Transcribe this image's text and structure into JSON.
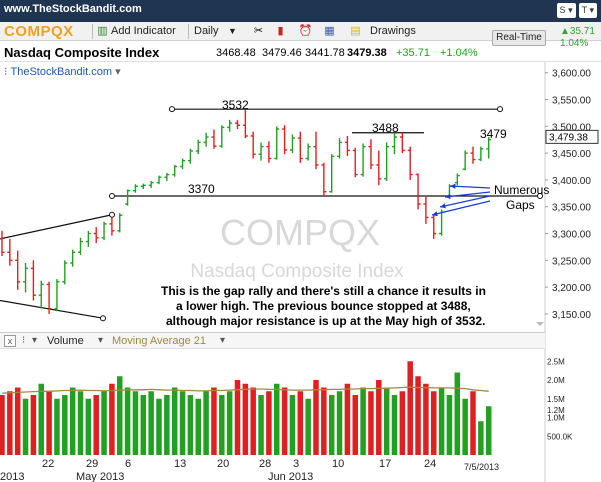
{
  "header": {
    "site_url": "www.TheStockBandit.com",
    "share_label": "S",
    "toggle_label": "T"
  },
  "toolbar": {
    "ticker": "COMPQX",
    "add_indicator": "Add Indicator",
    "interval": "Daily",
    "drawings": "Drawings"
  },
  "title": {
    "name": "Nasdaq Composite Index",
    "open": "3468.48",
    "high": "3479.46",
    "low": "3441.78",
    "close": "3479.38",
    "change": "+35.71",
    "change_pct": "+1.04%",
    "realtime_label": "Real-Time",
    "rt_change": "35.71",
    "rt_pct": "1.04%"
  },
  "chart_header": {
    "brand": "TheStockBandit.com"
  },
  "watermark": {
    "symbol": "COMPQX",
    "name": "Nasdaq Composite Index"
  },
  "annotations": {
    "high_label": "3532",
    "mid_label": "3488",
    "support_label": "3370",
    "last_label": "3479",
    "gaps_line1": "Numerous",
    "gaps_line2": "Gaps",
    "note_line1": "This is the gap rally and there's still a chance it results in",
    "note_line2": "a lower high. The previous bounce stopped at 3488,",
    "note_line3": "although major resistance is up at the May high of 3532."
  },
  "price_axis": {
    "ticks": [
      "3,600.00",
      "3,550.00",
      "3,500.00",
      "3,450.00",
      "3,400.00",
      "3,350.00",
      "3,300.00",
      "3,250.00",
      "3,200.00",
      "3,150.00"
    ],
    "last_price": "3,479.38"
  },
  "volume_panel": {
    "title": "Volume",
    "ma_label": "Moving Average 21",
    "ticks": [
      "2.5M",
      "2.0M",
      "1.5M",
      "1.2M",
      "1.0M",
      "500.0K"
    ]
  },
  "date_axis": {
    "labels": [
      "2013",
      "22",
      "29",
      "May 2013",
      "6",
      "13",
      "20",
      "28",
      "3",
      "Jun 2013",
      "10",
      "17",
      "24",
      "7/5/2013"
    ]
  },
  "colors": {
    "up": "#22a022",
    "down": "#e02020",
    "ticker": "#f0a020",
    "header_bg": "#1f3552",
    "arrows": "#1a3fd6"
  },
  "chart_data": {
    "type": "ohlc",
    "ylim": [
      3120,
      3620
    ],
    "bars": [
      {
        "o": 3290,
        "h": 3305,
        "l": 3258,
        "c": 3265
      },
      {
        "o": 3265,
        "h": 3290,
        "l": 3240,
        "c": 3250
      },
      {
        "o": 3250,
        "h": 3268,
        "l": 3195,
        "c": 3210
      },
      {
        "o": 3210,
        "h": 3245,
        "l": 3190,
        "c": 3235
      },
      {
        "o": 3235,
        "h": 3250,
        "l": 3175,
        "c": 3185
      },
      {
        "o": 3185,
        "h": 3212,
        "l": 3160,
        "c": 3205
      },
      {
        "o": 3205,
        "h": 3210,
        "l": 3150,
        "c": 3160
      },
      {
        "o": 3160,
        "h": 3215,
        "l": 3155,
        "c": 3210
      },
      {
        "o": 3210,
        "h": 3250,
        "l": 3205,
        "c": 3245
      },
      {
        "o": 3245,
        "h": 3270,
        "l": 3238,
        "c": 3265
      },
      {
        "o": 3265,
        "h": 3292,
        "l": 3260,
        "c": 3285
      },
      {
        "o": 3285,
        "h": 3305,
        "l": 3275,
        "c": 3300
      },
      {
        "o": 3300,
        "h": 3312,
        "l": 3282,
        "c": 3292
      },
      {
        "o": 3292,
        "h": 3322,
        "l": 3288,
        "c": 3318
      },
      {
        "o": 3318,
        "h": 3330,
        "l": 3296,
        "c": 3305
      },
      {
        "o": 3305,
        "h": 3338,
        "l": 3302,
        "c": 3334
      },
      {
        "o": 3355,
        "h": 3382,
        "l": 3352,
        "c": 3380
      },
      {
        "o": 3380,
        "h": 3392,
        "l": 3376,
        "c": 3388
      },
      {
        "o": 3388,
        "h": 3393,
        "l": 3383,
        "c": 3390
      },
      {
        "o": 3390,
        "h": 3398,
        "l": 3385,
        "c": 3395
      },
      {
        "o": 3395,
        "h": 3408,
        "l": 3392,
        "c": 3405
      },
      {
        "o": 3405,
        "h": 3413,
        "l": 3398,
        "c": 3410
      },
      {
        "o": 3410,
        "h": 3428,
        "l": 3406,
        "c": 3425
      },
      {
        "o": 3425,
        "h": 3440,
        "l": 3420,
        "c": 3436
      },
      {
        "o": 3436,
        "h": 3458,
        "l": 3430,
        "c": 3454
      },
      {
        "o": 3454,
        "h": 3475,
        "l": 3448,
        "c": 3470
      },
      {
        "o": 3470,
        "h": 3488,
        "l": 3462,
        "c": 3480
      },
      {
        "o": 3480,
        "h": 3494,
        "l": 3458,
        "c": 3463
      },
      {
        "o": 3463,
        "h": 3502,
        "l": 3460,
        "c": 3498
      },
      {
        "o": 3498,
        "h": 3512,
        "l": 3490,
        "c": 3506
      },
      {
        "o": 3506,
        "h": 3512,
        "l": 3495,
        "c": 3502
      },
      {
        "o": 3502,
        "h": 3532,
        "l": 3478,
        "c": 3482
      },
      {
        "o": 3482,
        "h": 3490,
        "l": 3440,
        "c": 3448
      },
      {
        "o": 3448,
        "h": 3470,
        "l": 3436,
        "c": 3462
      },
      {
        "o": 3462,
        "h": 3472,
        "l": 3432,
        "c": 3440
      },
      {
        "o": 3440,
        "h": 3500,
        "l": 3438,
        "c": 3495
      },
      {
        "o": 3495,
        "h": 3502,
        "l": 3448,
        "c": 3456
      },
      {
        "o": 3456,
        "h": 3485,
        "l": 3450,
        "c": 3478
      },
      {
        "o": 3478,
        "h": 3490,
        "l": 3432,
        "c": 3440
      },
      {
        "o": 3440,
        "h": 3468,
        "l": 3436,
        "c": 3462
      },
      {
        "o": 3462,
        "h": 3490,
        "l": 3420,
        "c": 3428
      },
      {
        "o": 3428,
        "h": 3432,
        "l": 3370,
        "c": 3378
      },
      {
        "o": 3378,
        "h": 3448,
        "l": 3376,
        "c": 3444
      },
      {
        "o": 3444,
        "h": 3478,
        "l": 3440,
        "c": 3470
      },
      {
        "o": 3470,
        "h": 3482,
        "l": 3445,
        "c": 3455
      },
      {
        "o": 3455,
        "h": 3460,
        "l": 3405,
        "c": 3410
      },
      {
        "o": 3410,
        "h": 3468,
        "l": 3406,
        "c": 3462
      },
      {
        "o": 3462,
        "h": 3476,
        "l": 3420,
        "c": 3428
      },
      {
        "o": 3428,
        "h": 3455,
        "l": 3390,
        "c": 3402
      },
      {
        "o": 3402,
        "h": 3470,
        "l": 3398,
        "c": 3462
      },
      {
        "o": 3462,
        "h": 3488,
        "l": 3448,
        "c": 3480
      },
      {
        "o": 3480,
        "h": 3488,
        "l": 3450,
        "c": 3455
      },
      {
        "o": 3455,
        "h": 3462,
        "l": 3400,
        "c": 3410
      },
      {
        "o": 3410,
        "h": 3412,
        "l": 3345,
        "c": 3355
      },
      {
        "o": 3355,
        "h": 3370,
        "l": 3318,
        "c": 3330
      },
      {
        "o": 3330,
        "h": 3335,
        "l": 3290,
        "c": 3300
      },
      {
        "o": 3300,
        "h": 3345,
        "l": 3296,
        "c": 3340
      },
      {
        "o": 3370,
        "h": 3392,
        "l": 3366,
        "c": 3388
      },
      {
        "o": 3395,
        "h": 3412,
        "l": 3390,
        "c": 3408
      },
      {
        "o": 3420,
        "h": 3455,
        "l": 3418,
        "c": 3450
      },
      {
        "o": 3450,
        "h": 3462,
        "l": 3430,
        "c": 3438
      },
      {
        "o": 3438,
        "h": 3462,
        "l": 3435,
        "c": 3458
      },
      {
        "o": 3458,
        "h": 3480,
        "l": 3440,
        "c": 3475
      }
    ],
    "volume_millions": [
      1.6,
      1.7,
      1.8,
      1.5,
      1.6,
      1.9,
      1.7,
      1.5,
      1.6,
      1.8,
      1.7,
      1.5,
      1.6,
      1.7,
      1.9,
      2.1,
      1.8,
      1.7,
      1.6,
      1.7,
      1.5,
      1.6,
      1.8,
      1.7,
      1.6,
      1.5,
      1.7,
      1.8,
      1.6,
      1.7,
      2.0,
      1.9,
      1.8,
      1.6,
      1.7,
      1.9,
      1.8,
      1.6,
      1.7,
      1.5,
      2.0,
      1.8,
      1.6,
      1.7,
      1.9,
      1.6,
      1.8,
      1.7,
      2.0,
      1.8,
      1.6,
      1.7,
      2.5,
      2.1,
      1.9,
      1.7,
      1.8,
      1.6,
      2.2,
      1.5,
      1.7,
      0.9,
      1.3
    ],
    "moving_average_21": [
      1.65,
      1.66,
      1.67,
      1.68,
      1.69,
      1.7,
      1.7,
      1.71,
      1.72,
      1.72,
      1.73,
      1.72,
      1.72,
      1.71,
      1.72,
      1.73,
      1.74,
      1.74,
      1.74,
      1.75,
      1.74,
      1.73,
      1.73,
      1.72,
      1.72,
      1.71,
      1.71,
      1.72,
      1.72,
      1.73,
      1.74,
      1.75,
      1.76,
      1.76,
      1.75,
      1.75,
      1.74,
      1.73,
      1.73,
      1.73,
      1.74,
      1.74,
      1.75,
      1.75,
      1.76,
      1.76,
      1.77,
      1.77,
      1.78,
      1.78,
      1.79,
      1.8,
      1.81,
      1.8,
      1.8,
      1.79,
      1.79,
      1.79,
      1.78,
      1.77,
      1.74,
      1.72,
      1.7
    ],
    "volume_ylim": [
      0,
      2.8
    ],
    "lines": [
      {
        "label": "3532",
        "value": 3532
      },
      {
        "label": "3370",
        "value": 3370
      }
    ]
  }
}
